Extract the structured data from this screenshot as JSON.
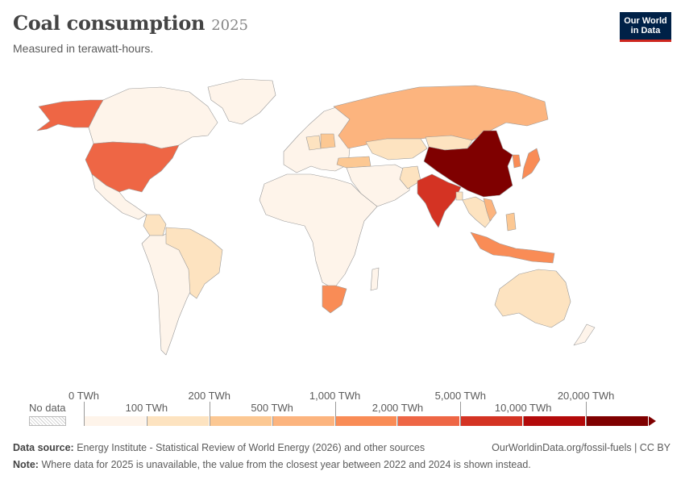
{
  "header": {
    "title": "Coal consumption",
    "year": "2025",
    "subtitle": "Measured in terawatt-hours."
  },
  "logo": {
    "line1": "Our World",
    "line2": "in Data"
  },
  "legend": {
    "no_data_label": "No data",
    "bins": [
      {
        "color": "#fef4ea"
      },
      {
        "color": "#fde3c0"
      },
      {
        "color": "#fcc893"
      },
      {
        "color": "#fcb47e"
      },
      {
        "color": "#f98c56"
      },
      {
        "color": "#ee6645"
      },
      {
        "color": "#d43323"
      },
      {
        "color": "#b30a0a"
      },
      {
        "color": "#7f0000"
      }
    ],
    "ticks": [
      {
        "label": "0 TWh",
        "row": "top"
      },
      {
        "label": "100 TWh",
        "row": "bottom"
      },
      {
        "label": "200 TWh",
        "row": "top"
      },
      {
        "label": "500 TWh",
        "row": "bottom"
      },
      {
        "label": "1,000 TWh",
        "row": "top"
      },
      {
        "label": "2,000 TWh",
        "row": "bottom"
      },
      {
        "label": "5,000 TWh",
        "row": "top"
      },
      {
        "label": "10,000 TWh",
        "row": "bottom"
      },
      {
        "label": "20,000 TWh",
        "row": "top"
      }
    ]
  },
  "regions": [
    {
      "id": "alaska",
      "color": "#ee6645"
    },
    {
      "id": "usa",
      "color": "#ee6645"
    },
    {
      "id": "canada",
      "color": "#fef4ea"
    },
    {
      "id": "greenland",
      "color": "#fef4ea"
    },
    {
      "id": "mexico",
      "color": "#fef4ea"
    },
    {
      "id": "south-america",
      "color": "#fef4ea"
    },
    {
      "id": "brazil",
      "color": "#fde3c0"
    },
    {
      "id": "colombia",
      "color": "#fde3c0"
    },
    {
      "id": "europe",
      "color": "#fef4ea"
    },
    {
      "id": "poland",
      "color": "#fcc893"
    },
    {
      "id": "germany",
      "color": "#fde3c0"
    },
    {
      "id": "turkey",
      "color": "#fcc893"
    },
    {
      "id": "russia",
      "color": "#fcb47e"
    },
    {
      "id": "kazakhstan",
      "color": "#fde3c0"
    },
    {
      "id": "mongolia",
      "color": "#fde3c0"
    },
    {
      "id": "china",
      "color": "#7f0000"
    },
    {
      "id": "india",
      "color": "#d43323"
    },
    {
      "id": "middle-east",
      "color": "#fef4ea"
    },
    {
      "id": "pakistan",
      "color": "#fde3c0"
    },
    {
      "id": "bangladesh",
      "color": "#fde3c0"
    },
    {
      "id": "southeast-asia",
      "color": "#fde3c0"
    },
    {
      "id": "vietnam",
      "color": "#fcb47e"
    },
    {
      "id": "japan",
      "color": "#f98c56"
    },
    {
      "id": "korea",
      "color": "#f98c56"
    },
    {
      "id": "indonesia",
      "color": "#f98c56"
    },
    {
      "id": "philippines",
      "color": "#fcc893"
    },
    {
      "id": "africa",
      "color": "#fef4ea"
    },
    {
      "id": "south-africa",
      "color": "#f98c56"
    },
    {
      "id": "australia",
      "color": "#fde3c0"
    },
    {
      "id": "new-zealand",
      "color": "#fef4ea"
    },
    {
      "id": "madagascar",
      "color": "#fef4ea"
    }
  ],
  "footer": {
    "source_label": "Data source:",
    "source_text": "Energy Institute - Statistical Review of World Energy (2026) and other sources",
    "url_text": "OurWorldinData.org/fossil-fuels | CC BY",
    "note_label": "Note:",
    "note_text": "Where data for 2025 is unavailable, the value from the closest year between 2022 and 2024 is shown instead."
  }
}
